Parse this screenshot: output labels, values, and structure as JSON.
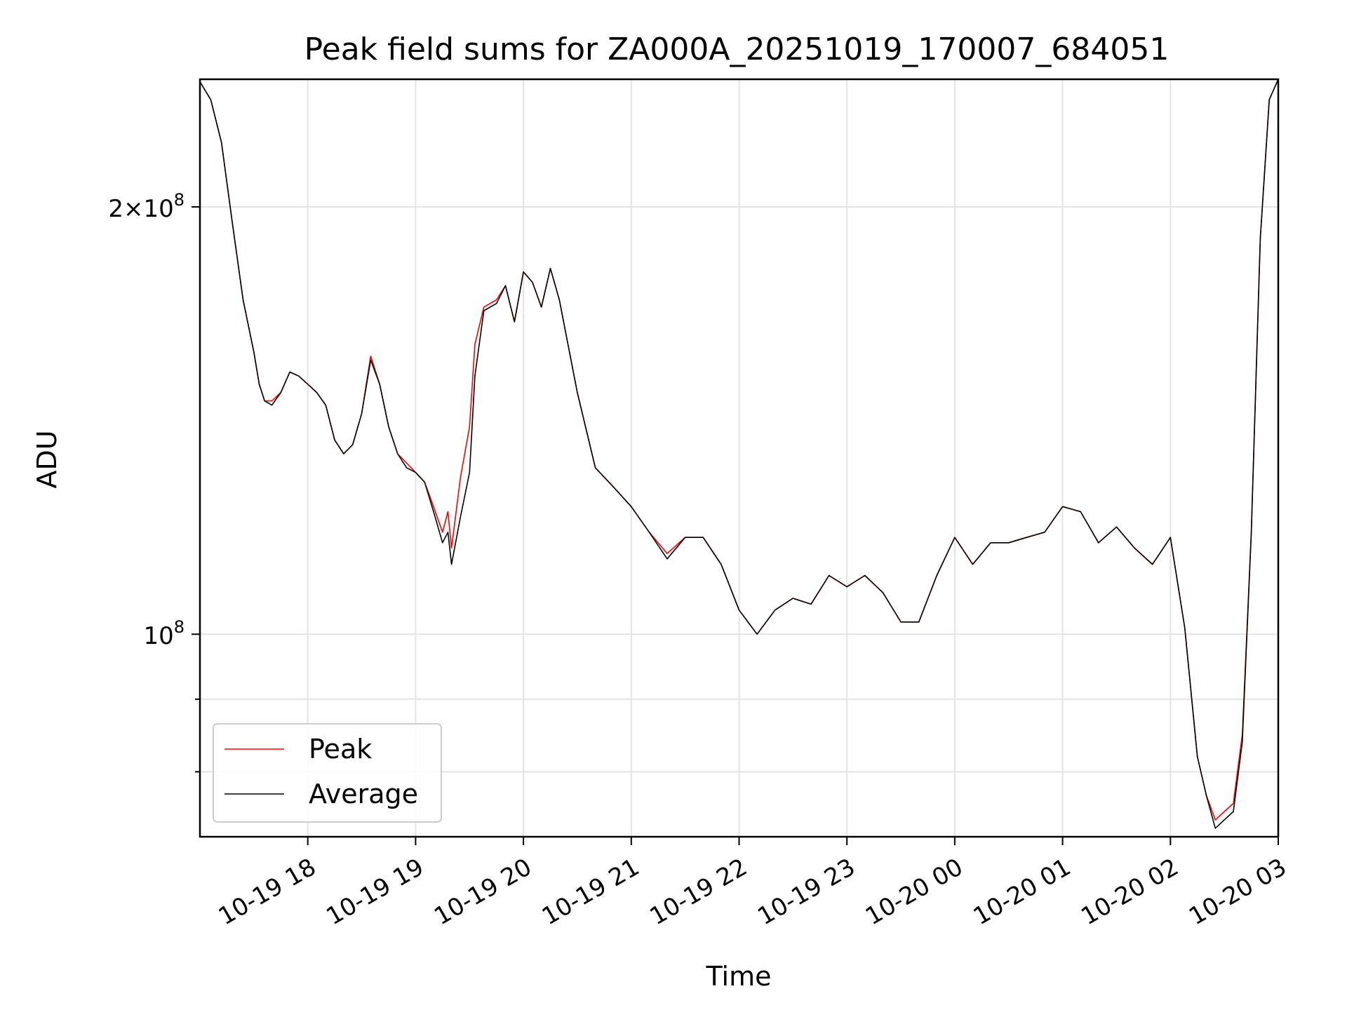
{
  "chart_data": {
    "type": "line",
    "title": "Peak field sums for ZA000A_20251019_170007_684051",
    "xlabel": "Time",
    "ylabel": "ADU",
    "yscale": "log",
    "ylim": [
      72000000,
      246000000
    ],
    "xlim": [
      "2025-10-19T17:00",
      "2025-10-20T03:00"
    ],
    "grid": true,
    "legend_position": "lower-left",
    "x_ticks": [
      "10-19 18",
      "10-19 19",
      "10-19 20",
      "10-19 21",
      "10-19 22",
      "10-19 23",
      "10-20 00",
      "10-20 01",
      "10-20 02",
      "10-20 03"
    ],
    "y_ticks": [
      {
        "value": 100000000,
        "label": "10^8"
      },
      {
        "value": 200000000,
        "label": "2×10^8"
      }
    ],
    "series": [
      {
        "name": "Peak",
        "color": "#ff0000",
        "x": [
          "2025-10-19T17:00",
          "2025-10-19T17:06",
          "2025-10-19T17:12",
          "2025-10-19T17:18",
          "2025-10-19T17:24",
          "2025-10-19T17:30",
          "2025-10-19T17:33",
          "2025-10-19T17:36",
          "2025-10-19T17:40",
          "2025-10-19T17:45",
          "2025-10-19T17:50",
          "2025-10-19T17:55",
          "2025-10-19T18:00",
          "2025-10-19T18:05",
          "2025-10-19T18:10",
          "2025-10-19T18:15",
          "2025-10-19T18:20",
          "2025-10-19T18:25",
          "2025-10-19T18:30",
          "2025-10-19T18:35",
          "2025-10-19T18:40",
          "2025-10-19T18:45",
          "2025-10-19T18:50",
          "2025-10-19T18:55",
          "2025-10-19T19:00",
          "2025-10-19T19:05",
          "2025-10-19T19:10",
          "2025-10-19T19:15",
          "2025-10-19T19:18",
          "2025-10-19T19:20",
          "2025-10-19T19:25",
          "2025-10-19T19:30",
          "2025-10-19T19:33",
          "2025-10-19T19:38",
          "2025-10-19T19:45",
          "2025-10-19T19:50",
          "2025-10-19T19:55",
          "2025-10-19T20:00",
          "2025-10-19T20:05",
          "2025-10-19T20:10",
          "2025-10-19T20:15",
          "2025-10-19T20:20",
          "2025-10-19T20:30",
          "2025-10-19T20:40",
          "2025-10-19T20:50",
          "2025-10-19T21:00",
          "2025-10-19T21:10",
          "2025-10-19T21:20",
          "2025-10-19T21:30",
          "2025-10-19T21:40",
          "2025-10-19T21:50",
          "2025-10-19T22:00",
          "2025-10-19T22:10",
          "2025-10-19T22:20",
          "2025-10-19T22:30",
          "2025-10-19T22:40",
          "2025-10-19T22:50",
          "2025-10-19T23:00",
          "2025-10-19T23:10",
          "2025-10-19T23:20",
          "2025-10-19T23:30",
          "2025-10-19T23:40",
          "2025-10-19T23:50",
          "2025-10-20T00:00",
          "2025-10-20T00:10",
          "2025-10-20T00:20",
          "2025-10-20T00:30",
          "2025-10-20T00:40",
          "2025-10-20T00:50",
          "2025-10-20T01:00",
          "2025-10-20T01:10",
          "2025-10-20T01:20",
          "2025-10-20T01:30",
          "2025-10-20T01:40",
          "2025-10-20T01:50",
          "2025-10-20T02:00",
          "2025-10-20T02:08",
          "2025-10-20T02:15",
          "2025-10-20T02:20",
          "2025-10-20T02:25",
          "2025-10-20T02:30",
          "2025-10-20T02:35",
          "2025-10-20T02:40",
          "2025-10-20T02:45",
          "2025-10-20T02:50",
          "2025-10-20T02:55",
          "2025-10-20T03:00"
        ],
        "y": [
          245000000,
          238000000,
          222000000,
          195000000,
          172000000,
          158000000,
          150000000,
          146000000,
          146000000,
          148000000,
          153000000,
          152000000,
          150000000,
          148000000,
          145000000,
          137000000,
          134000000,
          136000000,
          143000000,
          157000000,
          150000000,
          140000000,
          134000000,
          132000000,
          130000000,
          128000000,
          123000000,
          118000000,
          122000000,
          115000000,
          129000000,
          140000000,
          160000000,
          170000000,
          172000000,
          176000000,
          166000000,
          180000000,
          177000000,
          170000000,
          181000000,
          172000000,
          148000000,
          131000000,
          127000000,
          123000000,
          118000000,
          114000000,
          117000000,
          117000000,
          112000000,
          104000000,
          100000000,
          104000000,
          106000000,
          105000000,
          110000000,
          108000000,
          110000000,
          107000000,
          102000000,
          102000000,
          110000000,
          117000000,
          112000000,
          116000000,
          116000000,
          117000000,
          118000000,
          123000000,
          122000000,
          116000000,
          119000000,
          115000000,
          112000000,
          117000000,
          101000000,
          82000000,
          77000000,
          74000000,
          75000000,
          76000000,
          85000000,
          118000000,
          190000000,
          238000000,
          246000000
        ]
      },
      {
        "name": "Average",
        "color": "#000000",
        "x": [
          "2025-10-19T17:00",
          "2025-10-19T17:06",
          "2025-10-19T17:12",
          "2025-10-19T17:18",
          "2025-10-19T17:24",
          "2025-10-19T17:30",
          "2025-10-19T17:33",
          "2025-10-19T17:36",
          "2025-10-19T17:40",
          "2025-10-19T17:45",
          "2025-10-19T17:50",
          "2025-10-19T17:55",
          "2025-10-19T18:00",
          "2025-10-19T18:05",
          "2025-10-19T18:10",
          "2025-10-19T18:15",
          "2025-10-19T18:20",
          "2025-10-19T18:25",
          "2025-10-19T18:30",
          "2025-10-19T18:35",
          "2025-10-19T18:40",
          "2025-10-19T18:45",
          "2025-10-19T18:50",
          "2025-10-19T18:55",
          "2025-10-19T19:00",
          "2025-10-19T19:05",
          "2025-10-19T19:10",
          "2025-10-19T19:15",
          "2025-10-19T19:18",
          "2025-10-19T19:20",
          "2025-10-19T19:25",
          "2025-10-19T19:30",
          "2025-10-19T19:33",
          "2025-10-19T19:38",
          "2025-10-19T19:45",
          "2025-10-19T19:50",
          "2025-10-19T19:55",
          "2025-10-19T20:00",
          "2025-10-19T20:05",
          "2025-10-19T20:10",
          "2025-10-19T20:15",
          "2025-10-19T20:20",
          "2025-10-19T20:30",
          "2025-10-19T20:40",
          "2025-10-19T20:50",
          "2025-10-19T21:00",
          "2025-10-19T21:10",
          "2025-10-19T21:20",
          "2025-10-19T21:30",
          "2025-10-19T21:40",
          "2025-10-19T21:50",
          "2025-10-19T22:00",
          "2025-10-19T22:10",
          "2025-10-19T22:20",
          "2025-10-19T22:30",
          "2025-10-19T22:40",
          "2025-10-19T22:50",
          "2025-10-19T23:00",
          "2025-10-19T23:10",
          "2025-10-19T23:20",
          "2025-10-19T23:30",
          "2025-10-19T23:40",
          "2025-10-19T23:50",
          "2025-10-20T00:00",
          "2025-10-20T00:10",
          "2025-10-20T00:20",
          "2025-10-20T00:30",
          "2025-10-20T00:40",
          "2025-10-20T00:50",
          "2025-10-20T01:00",
          "2025-10-20T01:10",
          "2025-10-20T01:20",
          "2025-10-20T01:30",
          "2025-10-20T01:40",
          "2025-10-20T01:50",
          "2025-10-20T02:00",
          "2025-10-20T02:08",
          "2025-10-20T02:15",
          "2025-10-20T02:20",
          "2025-10-20T02:25",
          "2025-10-20T02:30",
          "2025-10-20T02:35",
          "2025-10-20T02:40",
          "2025-10-20T02:45",
          "2025-10-20T02:50",
          "2025-10-20T02:55",
          "2025-10-20T03:00"
        ],
        "y": [
          245000000,
          238000000,
          222000000,
          195000000,
          172000000,
          158000000,
          150000000,
          146000000,
          145000000,
          148000000,
          153000000,
          152000000,
          150000000,
          148000000,
          145000000,
          137000000,
          134000000,
          136000000,
          143000000,
          156000000,
          150000000,
          140000000,
          134000000,
          131000000,
          130000000,
          128000000,
          122000000,
          116000000,
          118000000,
          112000000,
          121000000,
          130000000,
          152000000,
          169000000,
          171000000,
          176000000,
          166000000,
          180000000,
          177000000,
          170000000,
          181000000,
          172000000,
          148000000,
          131000000,
          127000000,
          123000000,
          118000000,
          113000000,
          117000000,
          117000000,
          112000000,
          104000000,
          100000000,
          104000000,
          106000000,
          105000000,
          110000000,
          108000000,
          110000000,
          107000000,
          102000000,
          102000000,
          110000000,
          117000000,
          112000000,
          116000000,
          116000000,
          117000000,
          118000000,
          123000000,
          122000000,
          116000000,
          119000000,
          115000000,
          112000000,
          117000000,
          101000000,
          82000000,
          77000000,
          73000000,
          74000000,
          75000000,
          84000000,
          118000000,
          190000000,
          238000000,
          246000000
        ]
      }
    ]
  }
}
